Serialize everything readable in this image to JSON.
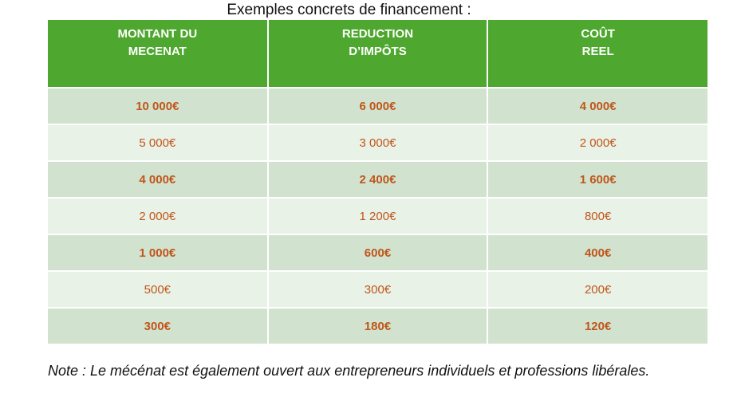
{
  "title": "Exemples concrets de financement :",
  "table": {
    "header": [
      [
        "MONTANT DU",
        "MECENAT"
      ],
      [
        "REDUCTION",
        "D’IMPÔTS"
      ],
      [
        "COÛT",
        "REEL"
      ]
    ],
    "rows": [
      [
        "10 000€",
        "6 000€",
        "4 000€"
      ],
      [
        "5 000€",
        "3 000€",
        "2 000€"
      ],
      [
        "4 000€",
        "2 400€",
        "1 600€"
      ],
      [
        "2 000€",
        "1 200€",
        "800€"
      ],
      [
        "1 000€",
        "600€",
        "400€"
      ],
      [
        "500€",
        "300€",
        "200€"
      ],
      [
        "300€",
        "180€",
        "120€"
      ]
    ]
  },
  "note": "Note : Le mécénat est également ouvert aux entrepreneurs individuels et professions libérales."
}
